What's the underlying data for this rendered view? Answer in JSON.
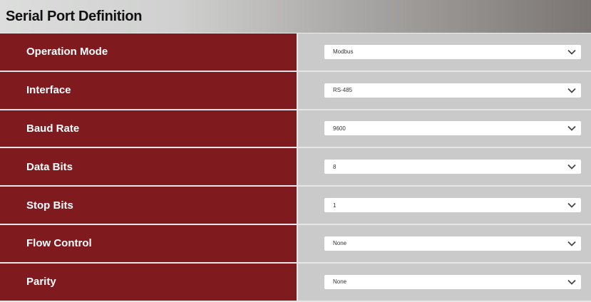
{
  "header": {
    "title": "Serial Port Definition"
  },
  "fields": [
    {
      "label": "Operation Mode",
      "value": "Modbus"
    },
    {
      "label": "Interface",
      "value": "RS-485"
    },
    {
      "label": "Baud Rate",
      "value": "9600"
    },
    {
      "label": "Data Bits",
      "value": "8"
    },
    {
      "label": "Stop Bits",
      "value": "1"
    },
    {
      "label": "Flow Control",
      "value": "None"
    },
    {
      "label": "Parity",
      "value": "None"
    }
  ],
  "colors": {
    "label_bg": "#7f1a1f",
    "value_bg": "#c9cac9"
  }
}
